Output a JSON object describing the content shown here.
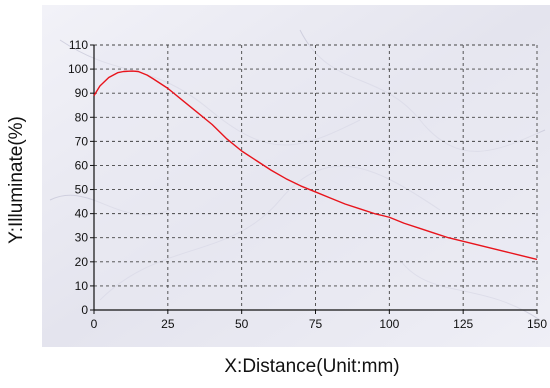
{
  "chart_data": {
    "type": "line",
    "xlabel": "X:Distance(Unit:mm)",
    "ylabel": "Y:Illuminate(%)",
    "xlim": [
      0,
      150
    ],
    "ylim": [
      0,
      110
    ],
    "x_ticks": [
      0,
      25,
      50,
      75,
      100,
      125,
      150
    ],
    "y_ticks": [
      0,
      10,
      20,
      30,
      40,
      50,
      60,
      70,
      80,
      90,
      100,
      110
    ],
    "grid": true,
    "legend": "none",
    "series": [
      {
        "color": "#e8141c",
        "x": [
          0,
          2,
          5,
          8,
          10,
          13,
          15,
          18,
          20,
          25,
          30,
          35,
          40,
          45,
          50,
          55,
          60,
          65,
          70,
          75,
          80,
          85,
          90,
          95,
          100,
          105,
          110,
          115,
          120,
          125,
          130,
          135,
          140,
          145,
          150
        ],
        "y": [
          89,
          93,
          96.5,
          98.5,
          99,
          99.2,
          99,
          97.5,
          96,
          92,
          87,
          82,
          77,
          71,
          66,
          62,
          58,
          54.5,
          51.5,
          49,
          46.5,
          44,
          42,
          40,
          38.5,
          36,
          34,
          32,
          30,
          28.5,
          27,
          25.5,
          24,
          22.5,
          21
        ]
      }
    ],
    "colors": {
      "line": "#e8141c",
      "grid": "#444444",
      "plot_background": "#e9e9f2"
    }
  }
}
